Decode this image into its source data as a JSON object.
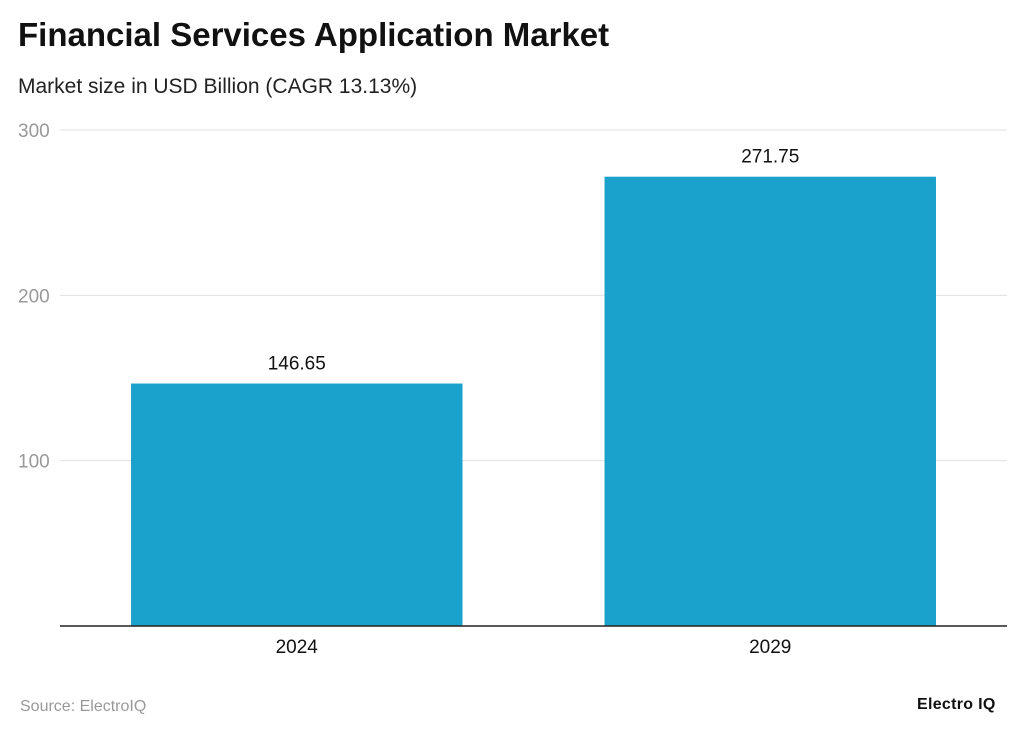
{
  "chart_data": {
    "type": "bar",
    "title": "Financial Services Application Market",
    "subtitle": "Market size in USD Billion (CAGR 13.13%)",
    "categories": [
      "2024",
      "2029"
    ],
    "values": [
      146.65,
      271.75
    ],
    "value_labels": [
      "146.65",
      "271.75"
    ],
    "yticks": [
      100,
      200,
      300
    ],
    "ylim": [
      0,
      300
    ],
    "grid": true,
    "bar_color": "#1aa1cc",
    "xlabel": "",
    "ylabel": ""
  },
  "footer": {
    "source": "Source: ElectroIQ",
    "logo": "Electro IQ"
  }
}
